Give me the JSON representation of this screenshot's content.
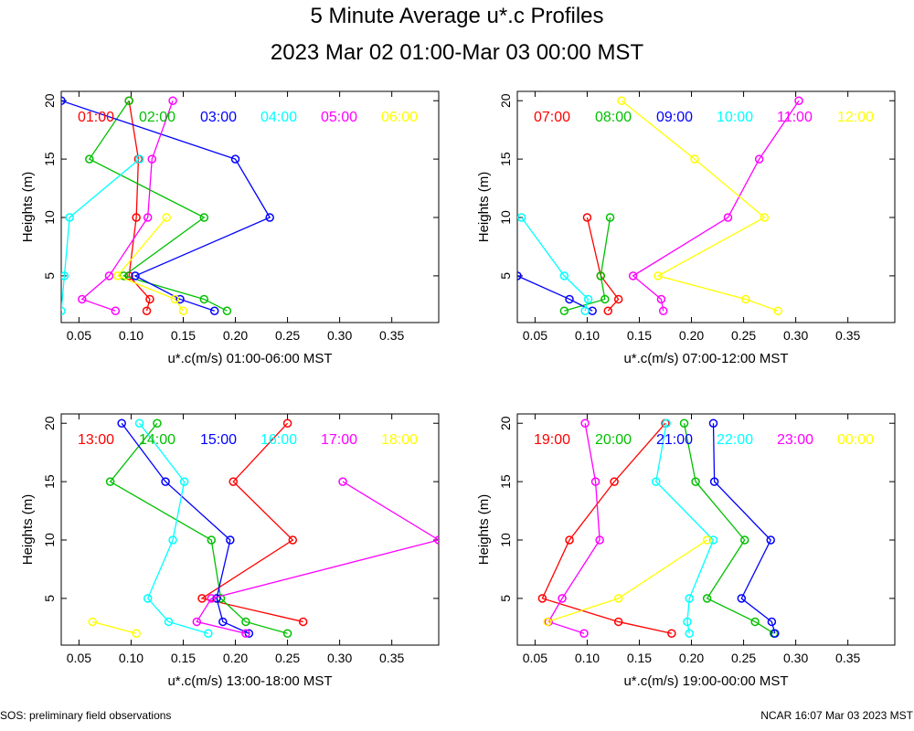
{
  "header": {
    "title": "5 Minute Average u*.c Profiles",
    "subtitle": "2023 Mar 02 01:00-Mar 03 00:00 MST"
  },
  "footer": {
    "left": "SOS: preliminary field observations",
    "right": "NCAR 16:07 Mar 03 2023 MST"
  },
  "chart_data": [
    {
      "type": "line",
      "xlabel": "u*.c(m/s) 01:00-06:00 MST",
      "ylabel": "Heights (m)",
      "xlim": [
        0.033,
        0.395
      ],
      "ylim": [
        1,
        20.8
      ],
      "xticks": [
        0.05,
        0.1,
        0.15,
        0.2,
        0.25,
        0.3,
        0.35
      ],
      "yticks": [
        5,
        10,
        15,
        20
      ],
      "heights": [
        2,
        3,
        5,
        10,
        15,
        20
      ],
      "series": [
        {
          "name": "01:00",
          "color": "#ff0000",
          "values": [
            0.115,
            0.118,
            0.098,
            0.105,
            0.107,
            0.098
          ]
        },
        {
          "name": "02:00",
          "color": "#00c000",
          "values": [
            0.192,
            0.17,
            0.093,
            0.17,
            0.06,
            0.098
          ]
        },
        {
          "name": "03:00",
          "color": "#0000ff",
          "values": [
            0.18,
            0.147,
            0.104,
            0.233,
            0.2,
            0.033
          ]
        },
        {
          "name": "04:00",
          "color": "#00ffff",
          "values": [
            0.033,
            null,
            0.036,
            0.041,
            0.108,
            null
          ]
        },
        {
          "name": "05:00",
          "color": "#ff00ff",
          "values": [
            0.085,
            0.053,
            0.079,
            0.116,
            0.12,
            0.14
          ]
        },
        {
          "name": "06:00",
          "color": "#ffff00",
          "values": [
            0.15,
            0.142,
            0.087,
            0.134,
            null,
            null
          ]
        }
      ]
    },
    {
      "type": "line",
      "xlabel": "u*.c(m/s) 07:00-12:00 MST",
      "ylabel": "Heights (m)",
      "xlim": [
        0.033,
        0.395
      ],
      "ylim": [
        1,
        20.8
      ],
      "xticks": [
        0.05,
        0.1,
        0.15,
        0.2,
        0.25,
        0.3,
        0.35
      ],
      "yticks": [
        5,
        10,
        15,
        20
      ],
      "heights": [
        2,
        3,
        5,
        10,
        15,
        20
      ],
      "series": [
        {
          "name": "07:00",
          "color": "#ff0000",
          "values": [
            0.12,
            0.13,
            0.113,
            0.1,
            null,
            null
          ]
        },
        {
          "name": "08:00",
          "color": "#00c000",
          "values": [
            0.078,
            0.117,
            0.113,
            0.122,
            null,
            null
          ]
        },
        {
          "name": "09:00",
          "color": "#0000ff",
          "values": [
            0.105,
            0.083,
            0.033,
            null,
            null,
            null
          ]
        },
        {
          "name": "10:00",
          "color": "#00ffff",
          "values": [
            0.098,
            0.101,
            0.078,
            0.037,
            null,
            null
          ]
        },
        {
          "name": "11:00",
          "color": "#ff00ff",
          "values": [
            0.173,
            0.171,
            0.144,
            0.235,
            0.265,
            0.303
          ]
        },
        {
          "name": "12:00",
          "color": "#ffff00",
          "values": [
            0.283,
            0.252,
            0.168,
            0.27,
            0.203,
            0.133
          ]
        }
      ]
    },
    {
      "type": "line",
      "xlabel": "u*.c(m/s) 13:00-18:00 MST",
      "ylabel": "Heights (m)",
      "xlim": [
        0.033,
        0.395
      ],
      "ylim": [
        1,
        20.8
      ],
      "xticks": [
        0.05,
        0.1,
        0.15,
        0.2,
        0.25,
        0.3,
        0.35
      ],
      "yticks": [
        5,
        10,
        15,
        20
      ],
      "heights": [
        2,
        3,
        5,
        10,
        15,
        20
      ],
      "series": [
        {
          "name": "13:00",
          "color": "#ff0000",
          "values": [
            null,
            0.265,
            0.168,
            0.255,
            0.198,
            0.25
          ]
        },
        {
          "name": "14:00",
          "color": "#00c000",
          "values": [
            0.25,
            0.21,
            0.186,
            0.177,
            0.08,
            0.125
          ]
        },
        {
          "name": "15:00",
          "color": "#0000ff",
          "values": [
            0.213,
            0.188,
            0.182,
            0.195,
            0.133,
            0.091
          ]
        },
        {
          "name": "16:00",
          "color": "#00ffff",
          "values": [
            0.174,
            0.136,
            0.116,
            0.14,
            0.151,
            0.108
          ]
        },
        {
          "name": "17:00",
          "color": "#ff00ff",
          "values": [
            0.21,
            0.163,
            0.177,
            0.395,
            0.303,
            null
          ]
        },
        {
          "name": "18:00",
          "color": "#ffff00",
          "values": [
            0.105,
            0.063,
            null,
            null,
            null,
            null
          ]
        }
      ]
    },
    {
      "type": "line",
      "xlabel": "u*.c(m/s) 19:00-00:00 MST",
      "ylabel": "Heights (m)",
      "xlim": [
        0.033,
        0.395
      ],
      "ylim": [
        1,
        20.8
      ],
      "xticks": [
        0.05,
        0.1,
        0.15,
        0.2,
        0.25,
        0.3,
        0.35
      ],
      "yticks": [
        5,
        10,
        15,
        20
      ],
      "heights": [
        2,
        3,
        5,
        10,
        15,
        20
      ],
      "series": [
        {
          "name": "19:00",
          "color": "#ff0000",
          "values": [
            0.181,
            0.13,
            0.057,
            0.083,
            0.126,
            0.175
          ]
        },
        {
          "name": "20:00",
          "color": "#00c000",
          "values": [
            0.279,
            0.261,
            0.215,
            0.251,
            0.204,
            0.193
          ]
        },
        {
          "name": "21:00",
          "color": "#0000ff",
          "values": [
            0.28,
            0.277,
            0.248,
            0.276,
            0.222,
            0.221
          ]
        },
        {
          "name": "22:00",
          "color": "#00ffff",
          "values": [
            0.198,
            0.196,
            0.198,
            0.221,
            0.166,
            0.176
          ]
        },
        {
          "name": "23:00",
          "color": "#ff00ff",
          "values": [
            0.097,
            0.063,
            0.076,
            0.112,
            0.108,
            0.098
          ]
        },
        {
          "name": "00:00",
          "color": "#ffff00",
          "values": [
            null,
            0.062,
            0.13,
            0.215,
            null,
            null
          ]
        }
      ]
    }
  ]
}
